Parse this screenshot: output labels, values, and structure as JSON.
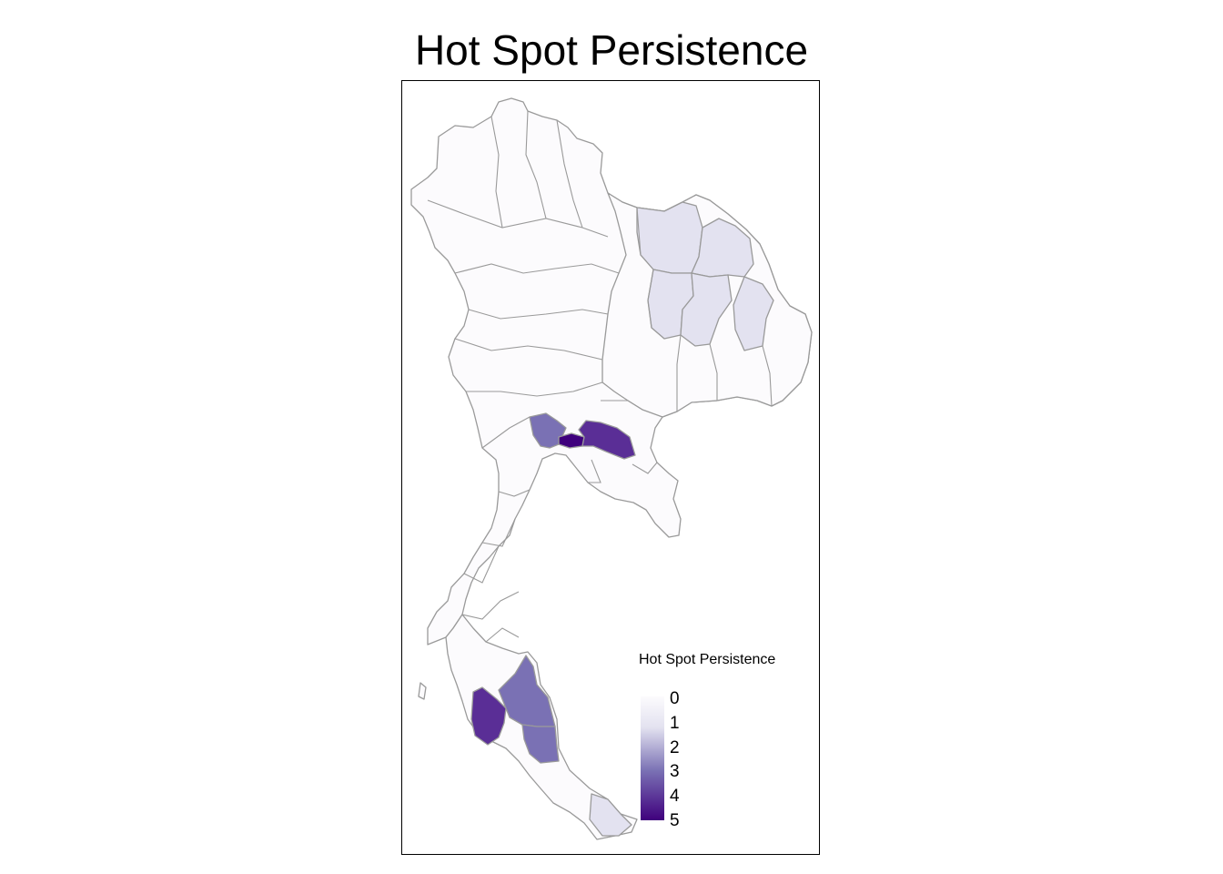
{
  "title": "Hot Spot Persistence",
  "legend": {
    "title": "Hot Spot Persistence",
    "ticks": [
      "0",
      "1",
      "2",
      "3",
      "4",
      "5"
    ],
    "min": 0,
    "max": 5,
    "color_low": "#fcfbfd",
    "color_high": "#3f007d"
  },
  "colors": {
    "border": "#9a9a9a",
    "level_0": "#fcfbfd",
    "level_1": "#e3e2f0",
    "level_3": "#7a71b4",
    "level_4": "#5a2e96",
    "level_5": "#3f007d"
  }
}
